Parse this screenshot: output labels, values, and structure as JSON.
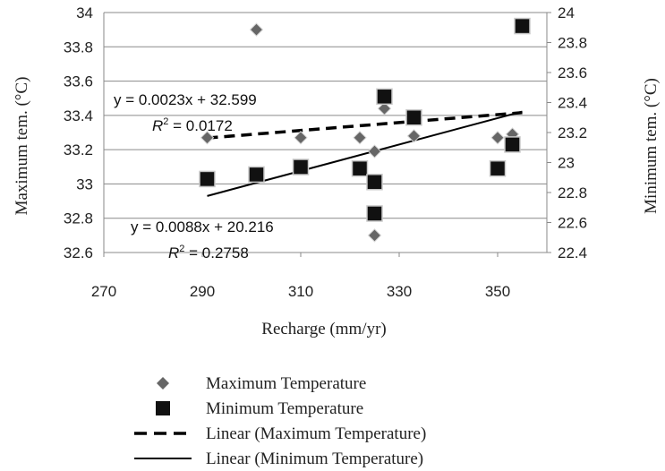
{
  "chart_data": {
    "type": "scatter",
    "title": "",
    "xlabel": "Recharge (mm/yr)",
    "ylabel": "Maximum tem. (°C)",
    "y2label": "Minimum tem. (°C)",
    "xlim": [
      270,
      360
    ],
    "ylim": [
      32.6,
      34
    ],
    "y2lim": [
      22.4,
      24
    ],
    "x_ticks": [
      "270",
      "290",
      "310",
      "330",
      "350"
    ],
    "y_ticks": [
      "32.6",
      "32.8",
      "33",
      "33.2",
      "33.4",
      "33.6",
      "33.8",
      "34"
    ],
    "y2_ticks": [
      "22.4",
      "22.6",
      "22.8",
      "23",
      "23.2",
      "23.4",
      "23.6",
      "23.8",
      "24"
    ],
    "grid": "horizontal",
    "legend_position": "bottom",
    "series": [
      {
        "name": "Maximum Temperature",
        "axis": "left",
        "marker": "diamond",
        "color": "#666666",
        "points": [
          [
            291,
            33.27
          ],
          [
            301,
            33.9
          ],
          [
            310,
            33.27
          ],
          [
            322,
            33.27
          ],
          [
            325,
            33.19
          ],
          [
            325,
            32.7
          ],
          [
            327,
            33.44
          ],
          [
            333,
            33.28
          ],
          [
            350,
            33.27
          ],
          [
            353,
            33.29
          ]
        ]
      },
      {
        "name": "Minimum Temperature",
        "axis": "right",
        "marker": "square",
        "color": "#111111",
        "points": [
          [
            291,
            22.89
          ],
          [
            301,
            22.92
          ],
          [
            310,
            22.97
          ],
          [
            322,
            22.96
          ],
          [
            325,
            22.87
          ],
          [
            325,
            22.66
          ],
          [
            327,
            23.44
          ],
          [
            333,
            23.3
          ],
          [
            350,
            22.96
          ],
          [
            353,
            23.12
          ],
          [
            355,
            23.91
          ]
        ]
      },
      {
        "name": "Linear (Maximum Temperature)",
        "axis": "left",
        "line_style": "dashed",
        "color": "#000000",
        "x": [
          291,
          355
        ],
        "y": [
          33.268,
          33.416
        ]
      },
      {
        "name": "Linear (Minimum Temperature)",
        "axis": "right",
        "line_style": "solid",
        "color": "#000000",
        "x": [
          291,
          355
        ],
        "y": [
          22.777,
          23.34
        ]
      }
    ],
    "annotations": {
      "max_equation": "y = 0.0023x + 32.599",
      "max_r2_value": " = 0.0172",
      "min_equation": "y = 0.0088x + 20.216",
      "min_r2_value": " = 0.2758"
    }
  }
}
